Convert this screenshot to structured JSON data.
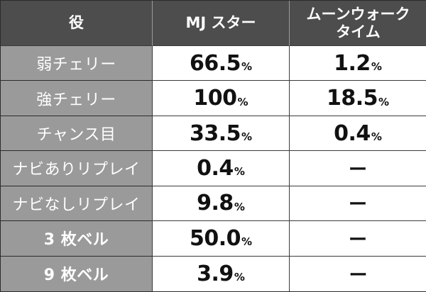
{
  "header": {
    "col_role": "役",
    "col_mj": "MJ スター",
    "col_moon_line1": "ムーンウォーク",
    "col_moon_line2": "タイム"
  },
  "rows": [
    {
      "role": "弱チェリー",
      "mj": "66.5",
      "mj_unit": "%",
      "moon": "1.2",
      "moon_unit": "%"
    },
    {
      "role": "強チェリー",
      "mj": "100",
      "mj_unit": "%",
      "moon": "18.5",
      "moon_unit": "%"
    },
    {
      "role": "チャンス目",
      "mj": "33.5",
      "mj_unit": "%",
      "moon": "0.4",
      "moon_unit": "%"
    },
    {
      "role": "ナビありリプレイ",
      "mj": "0.4",
      "mj_unit": "%",
      "moon": "ー",
      "moon_unit": ""
    },
    {
      "role": "ナビなしリプレイ",
      "mj": "9.8",
      "mj_unit": "%",
      "moon": "ー",
      "moon_unit": ""
    },
    {
      "role": "3 枚ベル",
      "mj": "50.0",
      "mj_unit": "%",
      "moon": "ー",
      "moon_unit": ""
    },
    {
      "role": "9 枚ベル",
      "mj": "3.9",
      "mj_unit": "%",
      "moon": "ー",
      "moon_unit": ""
    }
  ],
  "colors": {
    "header_bg": "#4d4d4d",
    "role_bg": "#9a9a9a",
    "value_bg": "#ffffff",
    "border": "#2b2b2b"
  }
}
